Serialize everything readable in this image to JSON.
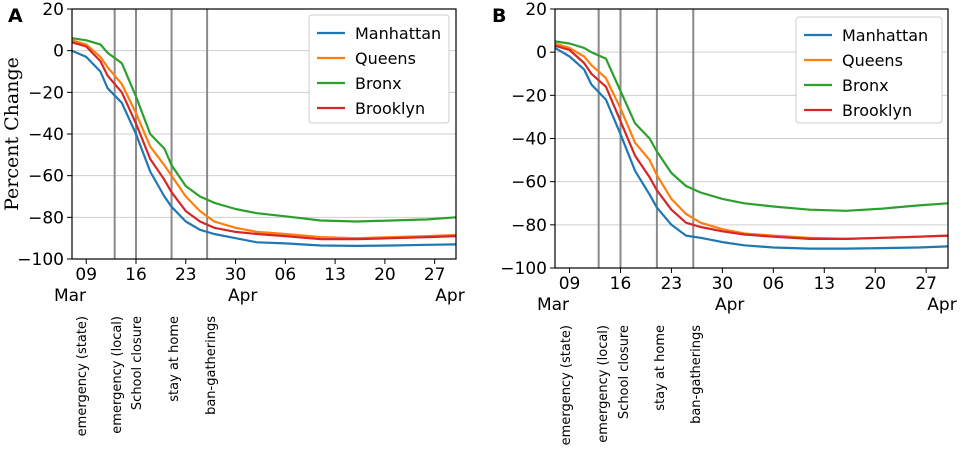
{
  "chart_data": [
    {
      "type": "line",
      "panel_label": "A",
      "title": "",
      "xlabel": "",
      "ylabel": "Percent Change",
      "ylim": [
        -100,
        20
      ],
      "yticks": [
        20,
        0,
        -20,
        -40,
        -60,
        -80,
        -100
      ],
      "ytick_labels": [
        "20",
        "0",
        "−20",
        "−40",
        "−60",
        "−80",
        "−100"
      ],
      "xlim": [
        0,
        54
      ],
      "xticks": [
        {
          "x": 2,
          "label": "09"
        },
        {
          "x": 9,
          "label": "16"
        },
        {
          "x": 16,
          "label": "23"
        },
        {
          "x": 23,
          "label": "30"
        },
        {
          "x": 30,
          "label": "06"
        },
        {
          "x": 37,
          "label": "13"
        },
        {
          "x": 44,
          "label": "20"
        },
        {
          "x": 51,
          "label": "27"
        }
      ],
      "month_labels": [
        {
          "x": 0,
          "label": "Mar"
        },
        {
          "x": 24,
          "label": "Apr"
        },
        {
          "x": 54,
          "label": "Apr"
        }
      ],
      "grid": true,
      "legend_position": "top-right",
      "events": [
        {
          "x": 5,
          "label": "emergency (state)"
        },
        {
          "x": 8,
          "label": "emergency (local)"
        },
        {
          "x": 13,
          "label": "School closure"
        },
        {
          "x": 18,
          "label": "stay at home"
        }
      ],
      "event_labels_extra": [
        "ban-gatherings"
      ],
      "event_lines": [
        6,
        9,
        14,
        19
      ],
      "series": [
        {
          "name": "Manhattan",
          "color": "#1f77b4",
          "x": [
            0,
            2,
            4,
            5,
            7,
            9,
            11,
            13,
            14,
            16,
            18,
            20,
            23,
            26,
            30,
            35,
            40,
            45,
            50,
            54
          ],
          "y": [
            0,
            -3,
            -10,
            -18,
            -25,
            -40,
            -58,
            -70,
            -75,
            -82,
            -86,
            -88,
            -90,
            -92,
            -92.5,
            -93.5,
            -93.7,
            -93.5,
            -93.2,
            -93
          ]
        },
        {
          "name": "Queens",
          "color": "#ff7f0e",
          "x": [
            0,
            2,
            4,
            5,
            7,
            9,
            11,
            13,
            14,
            16,
            18,
            20,
            23,
            26,
            30,
            35,
            40,
            45,
            50,
            54
          ],
          "y": [
            5,
            3,
            -3,
            -8,
            -16,
            -30,
            -46,
            -55,
            -60,
            -70,
            -77,
            -82,
            -85,
            -87,
            -88,
            -89.5,
            -90,
            -89.5,
            -89,
            -88.5
          ]
        },
        {
          "name": "Bronx",
          "color": "#2ca02c",
          "x": [
            0,
            2,
            4,
            5,
            7,
            9,
            11,
            13,
            14,
            16,
            18,
            20,
            23,
            26,
            30,
            35,
            40,
            45,
            50,
            54
          ],
          "y": [
            6,
            5,
            3,
            -1,
            -6,
            -22,
            -40,
            -47,
            -55,
            -65,
            -70,
            -73,
            -76,
            -78,
            -79.5,
            -81.5,
            -82,
            -81.5,
            -81,
            -80
          ]
        },
        {
          "name": "Brooklyn",
          "color": "#d62728",
          "x": [
            0,
            2,
            4,
            5,
            7,
            9,
            11,
            13,
            14,
            16,
            18,
            20,
            23,
            26,
            30,
            35,
            40,
            45,
            50,
            54
          ],
          "y": [
            4,
            2,
            -5,
            -12,
            -20,
            -35,
            -52,
            -62,
            -68,
            -77,
            -82,
            -85,
            -87,
            -88,
            -89,
            -90.5,
            -90.5,
            -90,
            -89.5,
            -89
          ]
        }
      ]
    },
    {
      "type": "line",
      "panel_label": "B",
      "title": "",
      "xlabel": "",
      "ylabel": "",
      "ylim": [
        -100,
        20
      ],
      "yticks": [
        20,
        0,
        -20,
        -40,
        -60,
        -80,
        -100
      ],
      "ytick_labels": [
        "20",
        "0",
        "−20",
        "−40",
        "−60",
        "−80",
        "−100"
      ],
      "xlim": [
        0,
        54
      ],
      "xticks": [
        {
          "x": 2,
          "label": "09"
        },
        {
          "x": 9,
          "label": "16"
        },
        {
          "x": 16,
          "label": "23"
        },
        {
          "x": 23,
          "label": "30"
        },
        {
          "x": 30,
          "label": "06"
        },
        {
          "x": 37,
          "label": "13"
        },
        {
          "x": 44,
          "label": "20"
        },
        {
          "x": 51,
          "label": "27"
        }
      ],
      "month_labels": [
        {
          "x": 0,
          "label": "Mar"
        },
        {
          "x": 24,
          "label": "Apr"
        },
        {
          "x": 54,
          "label": "Apr"
        }
      ],
      "grid": true,
      "legend_position": "top-right",
      "events": [
        {
          "x": 5,
          "label": "emergency (state)"
        },
        {
          "x": 8,
          "label": "emergency (local)"
        },
        {
          "x": 13,
          "label": "School closure"
        },
        {
          "x": 18,
          "label": "stay at home"
        }
      ],
      "event_labels_extra": [
        "ban-gatherings"
      ],
      "event_lines": [
        6,
        9,
        14,
        19
      ],
      "series": [
        {
          "name": "Manhattan",
          "color": "#1f77b4",
          "x": [
            0,
            2,
            4,
            5,
            7,
            9,
            11,
            13,
            14,
            16,
            18,
            20,
            23,
            26,
            30,
            35,
            40,
            45,
            50,
            54
          ],
          "y": [
            2,
            -2,
            -8,
            -15,
            -22,
            -38,
            -55,
            -66,
            -72,
            -80,
            -85,
            -86,
            -88,
            -89.5,
            -90.5,
            -91,
            -91,
            -90.8,
            -90.5,
            -90
          ]
        },
        {
          "name": "Queens",
          "color": "#ff7f0e",
          "x": [
            0,
            2,
            4,
            5,
            7,
            9,
            11,
            13,
            14,
            16,
            18,
            20,
            23,
            26,
            30,
            35,
            40,
            45,
            50,
            54
          ],
          "y": [
            4,
            2,
            -2,
            -6,
            -12,
            -26,
            -42,
            -50,
            -57,
            -68,
            -75,
            -79,
            -82,
            -84,
            -85,
            -86,
            -86.5,
            -86,
            -85.5,
            -85
          ]
        },
        {
          "name": "Bronx",
          "color": "#2ca02c",
          "x": [
            0,
            2,
            4,
            5,
            7,
            9,
            11,
            13,
            14,
            16,
            18,
            20,
            23,
            26,
            30,
            35,
            40,
            45,
            50,
            54
          ],
          "y": [
            5,
            4,
            2,
            0,
            -3,
            -18,
            -33,
            -40,
            -46,
            -56,
            -62,
            -65,
            -68,
            -70,
            -71.5,
            -73,
            -73.5,
            -72.5,
            -71,
            -70
          ]
        },
        {
          "name": "Brooklyn",
          "color": "#d62728",
          "x": [
            0,
            2,
            4,
            5,
            7,
            9,
            11,
            13,
            14,
            16,
            18,
            20,
            23,
            26,
            30,
            35,
            40,
            45,
            50,
            54
          ],
          "y": [
            3,
            1,
            -5,
            -10,
            -16,
            -32,
            -48,
            -58,
            -64,
            -73,
            -79,
            -81,
            -83,
            -84.5,
            -85.5,
            -86.5,
            -86.5,
            -86,
            -85.5,
            -85
          ]
        }
      ]
    }
  ]
}
